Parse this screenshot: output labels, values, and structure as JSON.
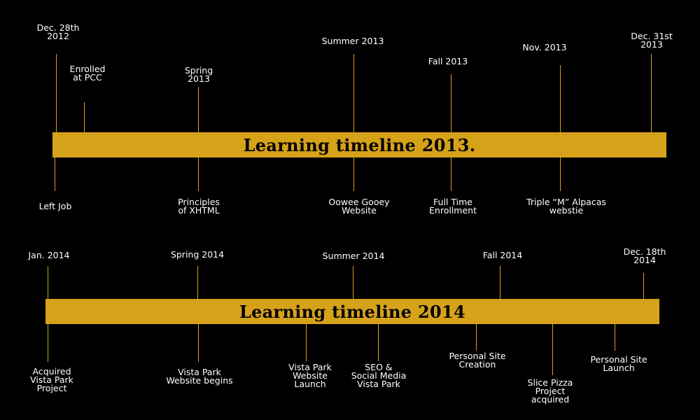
{
  "timelines": [
    {
      "title": "Learning timeline 2013.",
      "top_events": [
        "Dec. 28th\n2012",
        "Enrolled\nat PCC",
        "Spring\n2013",
        "Summer 2013",
        "Fall 2013",
        "Nov. 2013",
        "Dec. 31st\n2013"
      ],
      "bottom_events": [
        "Left Job",
        "Principles\nof XHTML",
        "Oowee Gooey\nWebsite",
        "Full Time\nEnrollment",
        "Triple “M” Alpacas\nwebstie"
      ]
    },
    {
      "title": "Learning timeline 2014",
      "top_events": [
        "Jan. 2014",
        "Spring 2014",
        "Summer 2014",
        "Fall 2014",
        "Dec. 18th\n2014"
      ],
      "bottom_events": [
        "Acquired\nVista Park\nProject",
        "Vista Park\nWebsite begins",
        "Vista Park\nWebsite\nLaunch",
        "SEO &\nSocial Media\nVista Park",
        "Personal Site\nCreation",
        "Slice Pizza\nProject\nacquired",
        "Personal Site\nLaunch"
      ]
    }
  ],
  "colors": {
    "background": "#000000",
    "band": "#d6a21a",
    "text": "#ffffff",
    "title_text": "#000000"
  }
}
